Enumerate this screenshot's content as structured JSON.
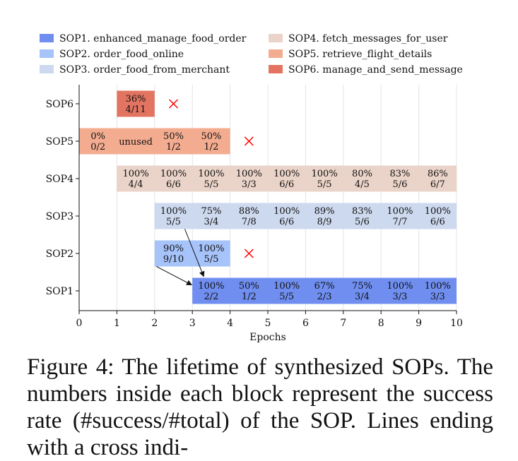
{
  "chart_data": {
    "type": "gantt",
    "xlabel": "Epochs",
    "xlim": [
      0,
      10
    ],
    "x_ticks": [
      "0",
      "1",
      "2",
      "3",
      "4",
      "5",
      "6",
      "7",
      "8",
      "9",
      "10"
    ],
    "rows": [
      "SOP6",
      "SOP5",
      "SOP4",
      "SOP3",
      "SOP2",
      "SOP1"
    ],
    "grid": "vertical",
    "legend_position": "top",
    "legend": [
      {
        "name": "SOP1. enhanced_manage_food_order",
        "color": "#6f8ef0"
      },
      {
        "name": "SOP2. order_food_online",
        "color": "#a6c3fa"
      },
      {
        "name": "SOP3. order_food_from_merchant",
        "color": "#cdd9ee"
      },
      {
        "name": "SOP4. fetch_messages_for_user",
        "color": "#ead3c8"
      },
      {
        "name": "SOP5. retrieve_flight_details",
        "color": "#f4ac90"
      },
      {
        "name": "SOP6. manage_and_send_message",
        "color": "#e27461"
      }
    ],
    "series": [
      {
        "row": "SOP6",
        "color": "#e27461",
        "start": 1,
        "end": 2,
        "ended_at": 2.5,
        "cells": [
          [
            "36%",
            "4/11"
          ]
        ]
      },
      {
        "row": "SOP5",
        "color": "#f4ac90",
        "start": 0,
        "end": 4,
        "ended_at": 4.5,
        "cells": [
          [
            "0%",
            "0/2"
          ],
          [
            "unused"
          ],
          [
            "50%",
            "1/2"
          ],
          [
            "50%",
            "1/2"
          ]
        ]
      },
      {
        "row": "SOP4",
        "color": "#ead3c8",
        "start": 1,
        "end": 10,
        "ended_at": null,
        "cells": [
          [
            "100%",
            "4/4"
          ],
          [
            "100%",
            "6/6"
          ],
          [
            "100%",
            "5/5"
          ],
          [
            "100%",
            "3/3"
          ],
          [
            "100%",
            "6/6"
          ],
          [
            "100%",
            "5/5"
          ],
          [
            "80%",
            "4/5"
          ],
          [
            "83%",
            "5/6"
          ],
          [
            "86%",
            "6/7"
          ]
        ]
      },
      {
        "row": "SOP3",
        "color": "#cdd9ee",
        "start": 2,
        "end": 10,
        "ended_at": null,
        "cells": [
          [
            "100%",
            "5/5"
          ],
          [
            "75%",
            "3/4"
          ],
          [
            "88%",
            "7/8"
          ],
          [
            "100%",
            "6/6"
          ],
          [
            "89%",
            "8/9"
          ],
          [
            "83%",
            "5/6"
          ],
          [
            "100%",
            "7/7"
          ],
          [
            "100%",
            "6/6"
          ]
        ]
      },
      {
        "row": "SOP2",
        "color": "#a6c3fa",
        "start": 2,
        "end": 4,
        "ended_at": 4.5,
        "cells": [
          [
            "90%",
            "9/10"
          ],
          [
            "100%",
            "5/5"
          ]
        ]
      },
      {
        "row": "SOP1",
        "color": "#6f8ef0",
        "start": 3,
        "end": 10,
        "ended_at": null,
        "cells": [
          [
            "100%",
            "2/2"
          ],
          [
            "50%",
            "1/2"
          ],
          [
            "100%",
            "5/5"
          ],
          [
            "67%",
            "2/3"
          ],
          [
            "75%",
            "3/4"
          ],
          [
            "100%",
            "3/3"
          ],
          [
            "100%",
            "3/3"
          ]
        ]
      }
    ],
    "merges": [
      {
        "from": "SOP3",
        "to": "SOP1",
        "at_epoch": 3
      },
      {
        "from": "SOP2",
        "to": "SOP1",
        "at_epoch": 3
      }
    ]
  },
  "caption": "Figure 4: The lifetime of synthesized SOPs. The numbers inside each block represent the success rate (#success/#total) of the SOP. Lines ending with a cross indi-"
}
